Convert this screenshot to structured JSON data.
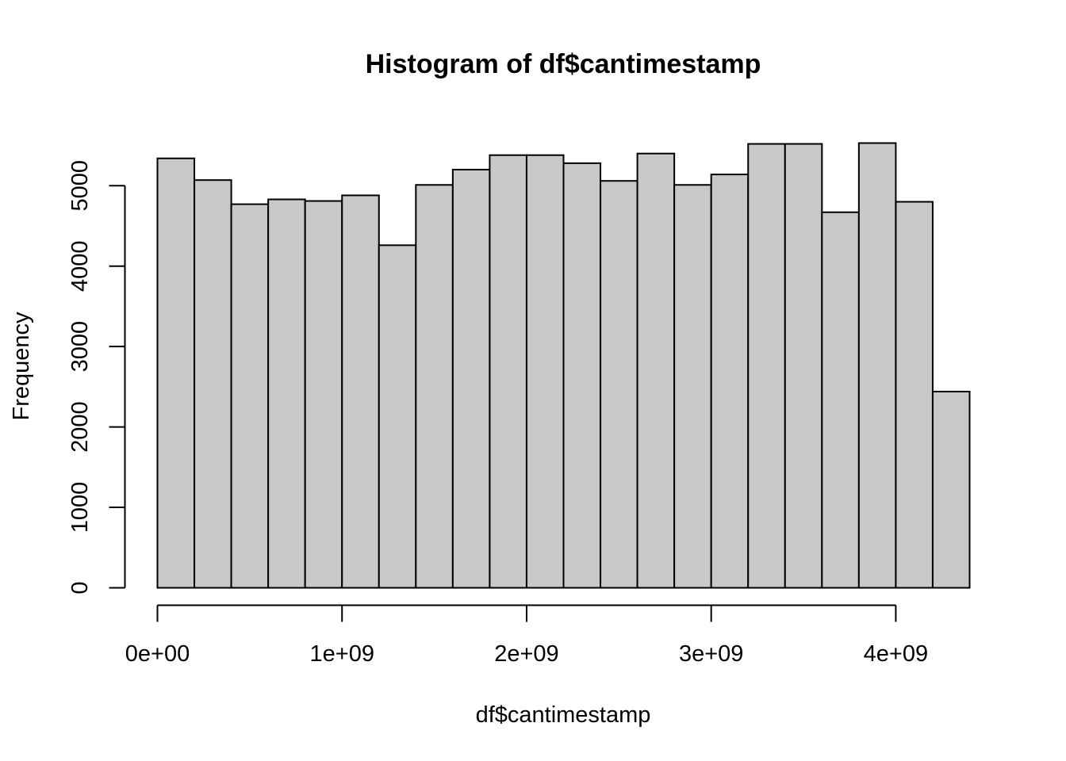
{
  "chart_data": {
    "type": "bar",
    "title": "Histogram of df$cantimestamp",
    "xlabel": "df$cantimestamp",
    "ylabel": "Frequency",
    "bin_edges": [
      0,
      200000000,
      400000000,
      600000000,
      800000000,
      1000000000,
      1200000000,
      1400000000,
      1600000000,
      1800000000,
      2000000000,
      2200000000,
      2400000000,
      2600000000,
      2800000000,
      3000000000,
      3200000000,
      3400000000,
      3600000000,
      3800000000,
      4000000000,
      4200000000,
      4400000000
    ],
    "values": [
      5340,
      5070,
      4770,
      4830,
      4810,
      4880,
      4260,
      5010,
      5200,
      5380,
      5380,
      5280,
      5060,
      5400,
      5010,
      5140,
      5520,
      5520,
      4670,
      5530,
      4800,
      2440
    ],
    "x_ticks": [
      0,
      1000000000,
      2000000000,
      3000000000,
      4000000000
    ],
    "x_tick_labels": [
      "0e+00",
      "1e+09",
      "2e+09",
      "3e+09",
      "4e+09"
    ],
    "y_ticks": [
      0,
      1000,
      2000,
      3000,
      4000,
      5000
    ],
    "y_tick_labels": [
      "0",
      "1000",
      "2000",
      "3000",
      "4000",
      "5000"
    ],
    "xlim": [
      0,
      4400000000
    ],
    "ylim": [
      0,
      5530
    ],
    "bar_color": "#c8c8c8",
    "grid": false,
    "legend": "none"
  }
}
